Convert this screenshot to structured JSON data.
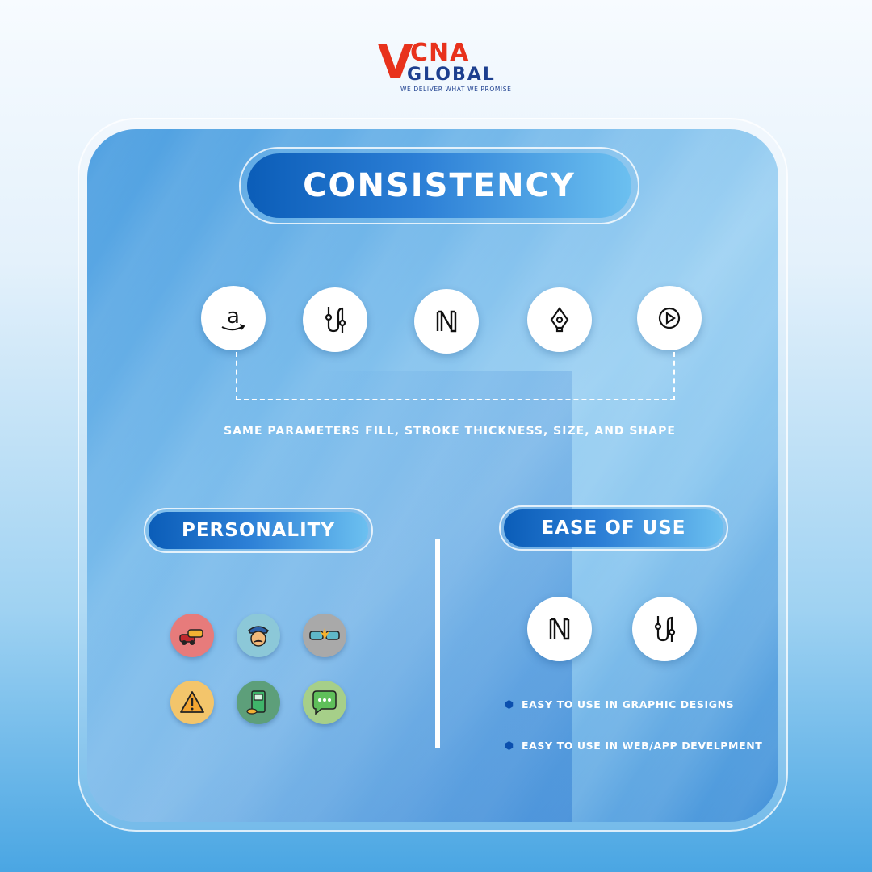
{
  "brand": {
    "logo_v": "V",
    "logo_cna": "CNA",
    "logo_global": "GLOBAL",
    "tagline": "WE DELIVER WHAT WE PROMISE",
    "colors": {
      "red": "#e8321c",
      "navy": "#1d3f8f"
    }
  },
  "consistency": {
    "title": "CONSISTENCY",
    "icons": [
      "amazon-icon",
      "route-icon",
      "notion-icon",
      "pen-tool-icon",
      "play-icon"
    ],
    "caption": "SAME PARAMETERS FILL, STROKE THICKNESS, SIZE, AND SHAPE"
  },
  "personality": {
    "title": "PERSONALITY",
    "icons": [
      "traffic-cars-icon",
      "police-officer-icon",
      "car-crash-icon",
      "warning-icon",
      "fuel-pump-icon",
      "chat-bubble-icon"
    ]
  },
  "ease_of_use": {
    "title": "EASE OF USE",
    "icons": [
      "notion-icon",
      "route-icon"
    ],
    "bullets": [
      "EASY TO USE IN GRAPHIC DESIGNS",
      "EASY TO USE IN WEB/APP DEVELPMENT"
    ]
  },
  "colors": {
    "pill_start": "#0b5db8",
    "pill_end": "#6cc0f0",
    "accent": "#ffffff"
  }
}
